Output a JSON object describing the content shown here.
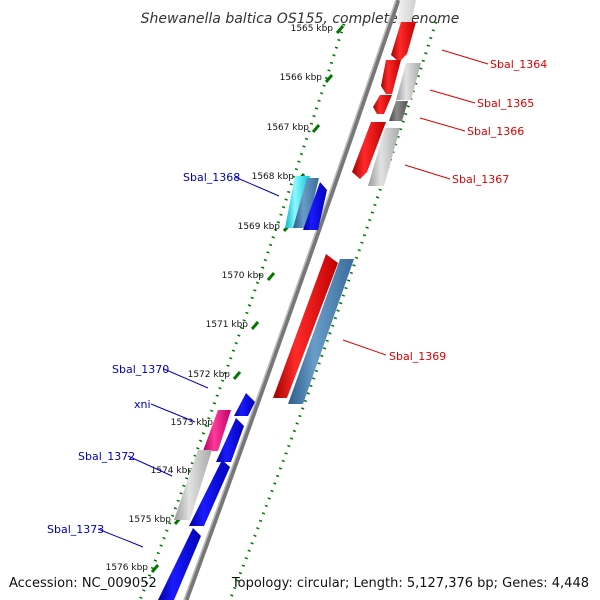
{
  "title": "Shewanella baltica OS155, complete genome",
  "footer": {
    "accession": "Accession: NC_009052",
    "summary": "Topology: circular; Length: 5,127,376 bp; Genes: 4,448"
  },
  "colors": {
    "forward_gene": "#ee0000",
    "reverse_gene": "#0000ee",
    "forward_label": "#dd0000",
    "reverse_label": "#0000bb",
    "tick": "#007700",
    "backbone": "#777777"
  },
  "ticks": [
    {
      "label": "1565 kbp"
    },
    {
      "label": "1566 kbp"
    },
    {
      "label": "1567 kbp"
    },
    {
      "label": "1568 kbp"
    },
    {
      "label": "1569 kbp"
    },
    {
      "label": "1570 kbp"
    },
    {
      "label": "1571 kbp"
    },
    {
      "label": "1572 kbp"
    },
    {
      "label": "1573 kbp"
    },
    {
      "label": "1574 kbp"
    },
    {
      "label": "1575 kbp"
    },
    {
      "label": "1576 kbp"
    }
  ],
  "gene_labels": [
    {
      "id": "sbal-1364",
      "text": "Sbal_1364"
    },
    {
      "id": "sbal-1365",
      "text": "Sbal_1365"
    },
    {
      "id": "sbal-1366",
      "text": "Sbal_1366"
    },
    {
      "id": "sbal-1367",
      "text": "Sbal_1367"
    },
    {
      "id": "sbal-1368",
      "text": "Sbal_1368"
    },
    {
      "id": "sbal-1369",
      "text": "Sbal_1369"
    },
    {
      "id": "sbal-1370",
      "text": "Sbal_1370"
    },
    {
      "id": "xni",
      "text": "xni"
    },
    {
      "id": "sbal-1372",
      "text": "Sbal_1372"
    },
    {
      "id": "sbal-1373",
      "text": "Sbal_1373"
    }
  ]
}
